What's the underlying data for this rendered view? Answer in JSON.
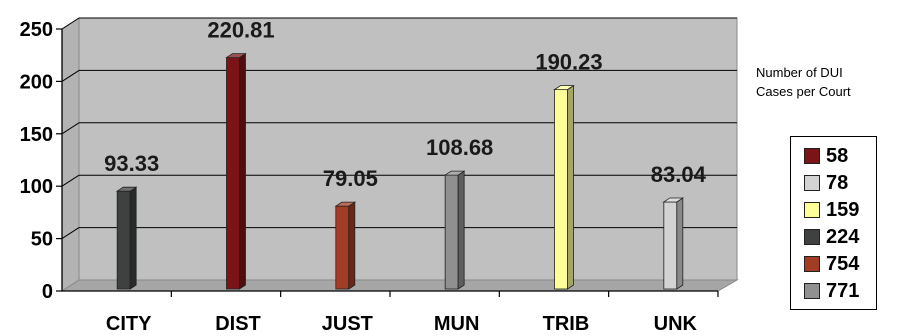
{
  "legend": {
    "title_line1": "Number of DUI",
    "title_line2": "Cases per Court",
    "items": [
      {
        "label": "58",
        "color": "#7b1416"
      },
      {
        "label": "78",
        "color": "#d3d3d3"
      },
      {
        "label": "159",
        "color": "#ffff99"
      },
      {
        "label": "224",
        "color": "#3f4141"
      },
      {
        "label": "754",
        "color": "#a33c24"
      },
      {
        "label": "771",
        "color": "#909090"
      }
    ]
  },
  "chart_data": {
    "type": "bar",
    "categories": [
      "CITY",
      "DIST",
      "JUST",
      "MUN",
      "TRIB",
      "UNK"
    ],
    "values": [
      93.33,
      220.81,
      79.05,
      108.68,
      190.23,
      83.04
    ],
    "data_labels": [
      "93.33",
      "220.81",
      "79.05",
      "108.68",
      "190.23",
      "83.04"
    ],
    "bar_colors": [
      "#3f4141",
      "#7b1416",
      "#a33c24",
      "#909090",
      "#ffff99",
      "#d3d3d3"
    ],
    "yticks": [
      0,
      50,
      100,
      150,
      200,
      250
    ],
    "ylim": [
      0,
      250
    ],
    "title": "",
    "xlabel": "",
    "ylabel": "",
    "grid": true,
    "style": "3d",
    "plot_background": "#c0c0c0",
    "floor_color": "#a6a6a6",
    "legend_position": "right"
  }
}
